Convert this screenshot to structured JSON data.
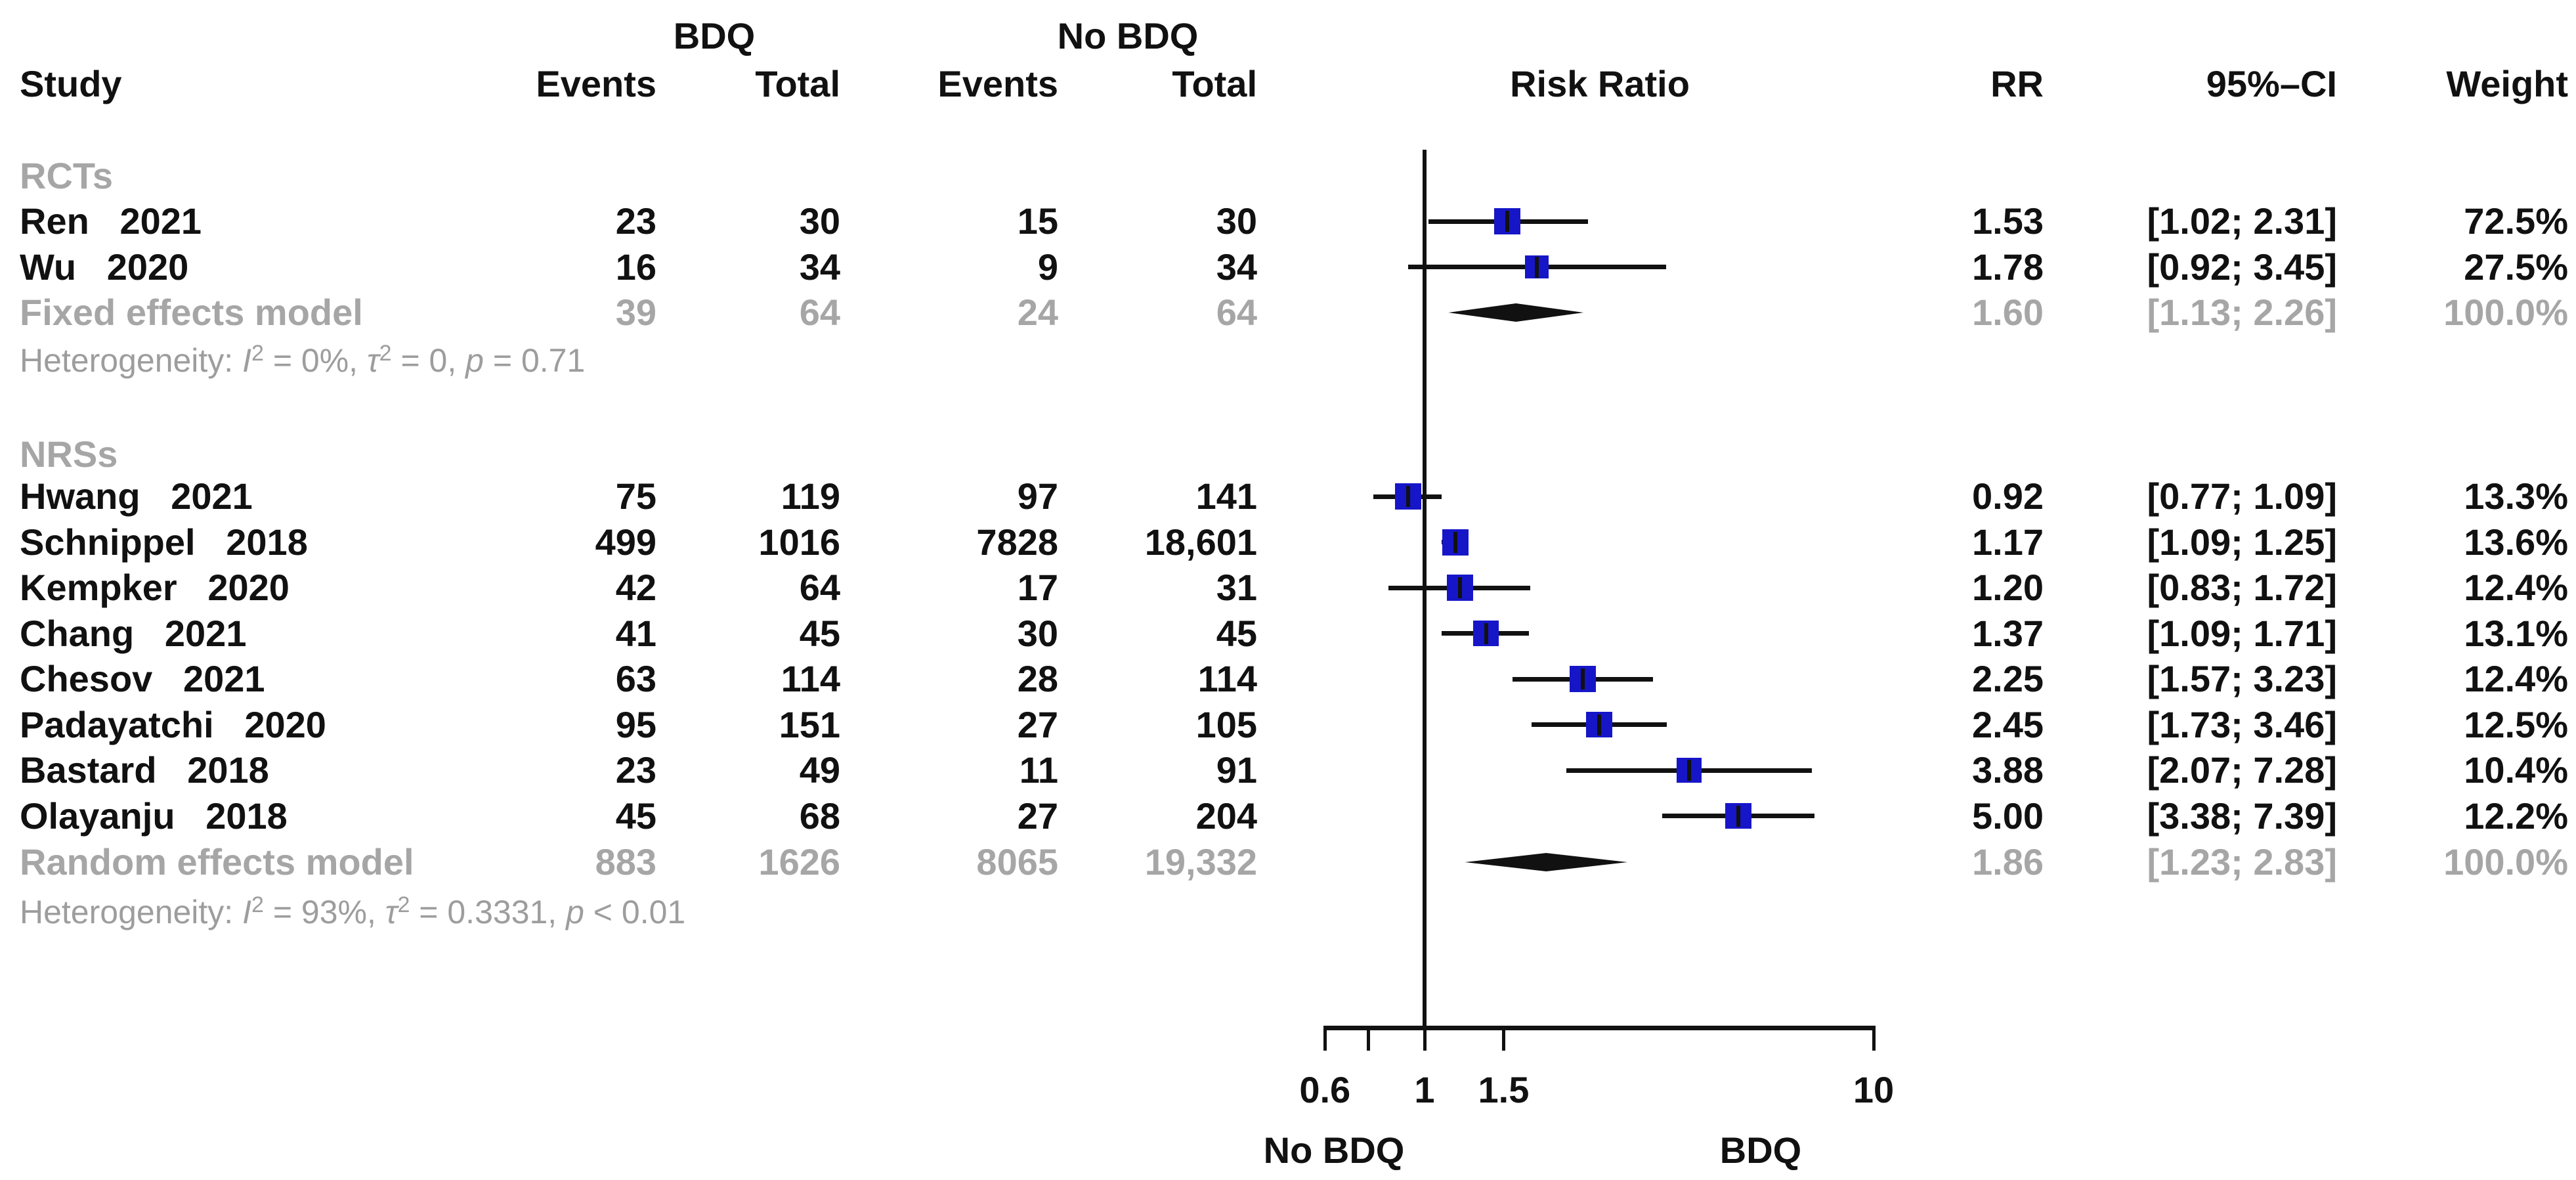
{
  "header": {
    "group_bdq": "BDQ",
    "group_nobdq": "No BDQ",
    "study": "Study",
    "events": "Events",
    "total": "Total",
    "risk_ratio": "Risk Ratio",
    "rr": "RR",
    "ci": "95%–CI",
    "weight": "Weight"
  },
  "colors": {
    "square_blue": "#1616C8",
    "line_black": "#111111",
    "gray_label": "#a6a6a6",
    "gray_het": "#9d9d9d"
  },
  "chart_data": {
    "type": "forest",
    "effect_measure": "Risk Ratio",
    "x_axis": {
      "scale": "log",
      "range": [
        0.6,
        10
      ],
      "ref_line": 1,
      "ticks": [
        {
          "v": 0.6,
          "label": "0.6"
        },
        {
          "v": 0.75,
          "label": ""
        },
        {
          "v": 1,
          "label": "1"
        },
        {
          "v": 1.5,
          "label": "1.5"
        },
        {
          "v": 10,
          "label": "10"
        }
      ],
      "label_left": "No BDQ",
      "label_right": "BDQ"
    },
    "groups": [
      {
        "label": "RCTs",
        "studies": [
          {
            "name": "Ren",
            "year": "2021",
            "bdq_events": "23",
            "bdq_total": "30",
            "nobdq_events": "15",
            "nobdq_total": "30",
            "rr": 1.53,
            "ci_low": 1.02,
            "ci_high": 2.31,
            "rr_text": "1.53",
            "ci_text": "[1.02; 2.31]",
            "weight": 72.5,
            "weight_text": "72.5%"
          },
          {
            "name": "Wu",
            "year": "2020",
            "bdq_events": "16",
            "bdq_total": "34",
            "nobdq_events": "9",
            "nobdq_total": "34",
            "rr": 1.78,
            "ci_low": 0.92,
            "ci_high": 3.45,
            "rr_text": "1.78",
            "ci_text": "[0.92; 3.45]",
            "weight": 27.5,
            "weight_text": "27.5%"
          }
        ],
        "model": {
          "label": "Fixed effects model",
          "bdq_events": "39",
          "bdq_total": "64",
          "nobdq_events": "24",
          "nobdq_total": "64",
          "rr": 1.6,
          "ci_low": 1.13,
          "ci_high": 2.26,
          "rr_text": "1.60",
          "ci_text": "[1.13; 2.26]",
          "weight_text": "100.0%"
        },
        "heterogeneity": [
          {
            "t": "Heterogeneity: "
          },
          {
            "t": "I",
            "i": true
          },
          {
            "t": "2",
            "sup": true
          },
          {
            "t": " = 0%, "
          },
          {
            "t": "τ",
            "i": true
          },
          {
            "t": "2",
            "sup": true
          },
          {
            "t": " = 0, "
          },
          {
            "t": "p",
            "i": true
          },
          {
            "t": " = 0.71"
          }
        ]
      },
      {
        "label": "NRSs",
        "studies": [
          {
            "name": "Hwang",
            "year": "2021",
            "bdq_events": "75",
            "bdq_total": "119",
            "nobdq_events": "97",
            "nobdq_total": "141",
            "rr": 0.92,
            "ci_low": 0.77,
            "ci_high": 1.09,
            "rr_text": "0.92",
            "ci_text": "[0.77; 1.09]",
            "weight": 13.3,
            "weight_text": "13.3%"
          },
          {
            "name": "Schnippel",
            "year": "2018",
            "bdq_events": "499",
            "bdq_total": "1016",
            "nobdq_events": "7828",
            "nobdq_total": "18,601",
            "rr": 1.17,
            "ci_low": 1.09,
            "ci_high": 1.25,
            "rr_text": "1.17",
            "ci_text": "[1.09; 1.25]",
            "weight": 13.6,
            "weight_text": "13.6%"
          },
          {
            "name": "Kempker",
            "year": "2020",
            "bdq_events": "42",
            "bdq_total": "64",
            "nobdq_events": "17",
            "nobdq_total": "31",
            "rr": 1.2,
            "ci_low": 0.83,
            "ci_high": 1.72,
            "rr_text": "1.20",
            "ci_text": "[0.83; 1.72]",
            "weight": 12.4,
            "weight_text": "12.4%"
          },
          {
            "name": "Chang",
            "year": "2021",
            "bdq_events": "41",
            "bdq_total": "45",
            "nobdq_events": "30",
            "nobdq_total": "45",
            "rr": 1.37,
            "ci_low": 1.09,
            "ci_high": 1.71,
            "rr_text": "1.37",
            "ci_text": "[1.09; 1.71]",
            "weight": 13.1,
            "weight_text": "13.1%"
          },
          {
            "name": "Chesov",
            "year": "2021",
            "bdq_events": "63",
            "bdq_total": "114",
            "nobdq_events": "28",
            "nobdq_total": "114",
            "rr": 2.25,
            "ci_low": 1.57,
            "ci_high": 3.23,
            "rr_text": "2.25",
            "ci_text": "[1.57; 3.23]",
            "weight": 12.4,
            "weight_text": "12.4%"
          },
          {
            "name": "Padayatchi",
            "year": "2020",
            "bdq_events": "95",
            "bdq_total": "151",
            "nobdq_events": "27",
            "nobdq_total": "105",
            "rr": 2.45,
            "ci_low": 1.73,
            "ci_high": 3.46,
            "rr_text": "2.45",
            "ci_text": "[1.73; 3.46]",
            "weight": 12.5,
            "weight_text": "12.5%"
          },
          {
            "name": "Bastard",
            "year": "2018",
            "bdq_events": "23",
            "bdq_total": "49",
            "nobdq_events": "11",
            "nobdq_total": "91",
            "rr": 3.88,
            "ci_low": 2.07,
            "ci_high": 7.28,
            "rr_text": "3.88",
            "ci_text": "[2.07; 7.28]",
            "weight": 10.4,
            "weight_text": "10.4%"
          },
          {
            "name": "Olayanju",
            "year": "2018",
            "bdq_events": "45",
            "bdq_total": "68",
            "nobdq_events": "27",
            "nobdq_total": "204",
            "rr": 5.0,
            "ci_low": 3.38,
            "ci_high": 7.39,
            "rr_text": "5.00",
            "ci_text": "[3.38; 7.39]",
            "weight": 12.2,
            "weight_text": "12.2%"
          }
        ],
        "model": {
          "label": "Random effects model",
          "bdq_events": "883",
          "bdq_total": "1626",
          "nobdq_events": "8065",
          "nobdq_total": "19,332",
          "rr": 1.86,
          "ci_low": 1.23,
          "ci_high": 2.83,
          "rr_text": "1.86",
          "ci_text": "[1.23; 2.83]",
          "weight_text": "100.0%"
        },
        "heterogeneity": [
          {
            "t": "Heterogeneity: "
          },
          {
            "t": "I",
            "i": true
          },
          {
            "t": "2",
            "sup": true
          },
          {
            "t": " = 93%, "
          },
          {
            "t": "τ",
            "i": true
          },
          {
            "t": "2",
            "sup": true
          },
          {
            "t": " = 0.3331, "
          },
          {
            "t": "p",
            "i": true
          },
          {
            "t": " < 0.01"
          }
        ]
      }
    ]
  }
}
